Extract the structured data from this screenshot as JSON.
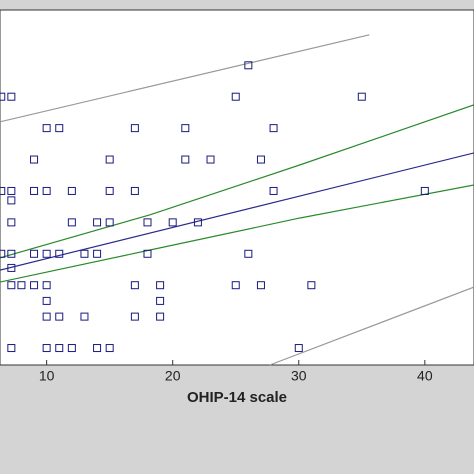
{
  "chart_data": {
    "type": "scatter",
    "xlabel": "OHIP-14 scale",
    "xlim": [
      6.3,
      43.9
    ],
    "ylim": [
      0.46,
      11.76
    ],
    "xticks": [
      10,
      20,
      30,
      40
    ],
    "points": {
      "color": "#1a1a80",
      "x": [
        26,
        6.4,
        7.2,
        25,
        35,
        10,
        11,
        17,
        21,
        28,
        9,
        15,
        21,
        23,
        27,
        6.4,
        7.2,
        9,
        10,
        12,
        15,
        17,
        28,
        40,
        7.2,
        7.2,
        12,
        14,
        15,
        18,
        20,
        22,
        6.4,
        7.2,
        9,
        10,
        11,
        13,
        14,
        18,
        26,
        7.2,
        7.2,
        8,
        9,
        10,
        17,
        19,
        25,
        27,
        31,
        10,
        19,
        10,
        11,
        13,
        17,
        19,
        7.2,
        10,
        11,
        12,
        14,
        15,
        30
      ],
      "y": [
        10,
        9,
        9,
        9,
        9,
        8,
        8,
        8,
        8,
        8,
        7,
        7,
        7,
        7,
        7,
        6,
        6,
        6,
        6,
        6,
        6,
        6,
        6,
        6,
        5.7,
        5,
        5,
        5,
        5,
        5,
        5,
        5,
        4,
        4,
        4,
        4,
        4,
        4,
        4,
        4,
        4,
        3.55,
        3,
        3,
        3,
        3,
        3,
        3,
        3,
        3,
        3,
        2.5,
        2.5,
        2,
        2,
        2,
        2,
        2,
        1,
        1,
        1,
        1,
        1,
        1,
        1
      ]
    },
    "series": [
      {
        "name": "regression",
        "color": "#2a2a8a",
        "x": [
          6.3,
          43.9
        ],
        "y": [
          3.48,
          7.21
        ]
      },
      {
        "name": "confidence-upper",
        "color": "#2a8a2a",
        "x": [
          6.3,
          18.2,
          30.1,
          43.9
        ],
        "y": [
          3.87,
          5.24,
          6.83,
          8.74
        ]
      },
      {
        "name": "confidence-lower",
        "color": "#2a8a2a",
        "x": [
          6.3,
          18.2,
          30.1,
          43.9
        ],
        "y": [
          3.1,
          4.12,
          5.14,
          6.19
        ]
      },
      {
        "name": "prediction-upper",
        "color": "#999999",
        "x": [
          6.3,
          35.6
        ],
        "y": [
          8.2,
          10.97
        ]
      },
      {
        "name": "prediction-lower",
        "color": "#999999",
        "x": [
          27.7,
          43.9
        ],
        "y": [
          0.46,
          2.94
        ]
      }
    ]
  }
}
